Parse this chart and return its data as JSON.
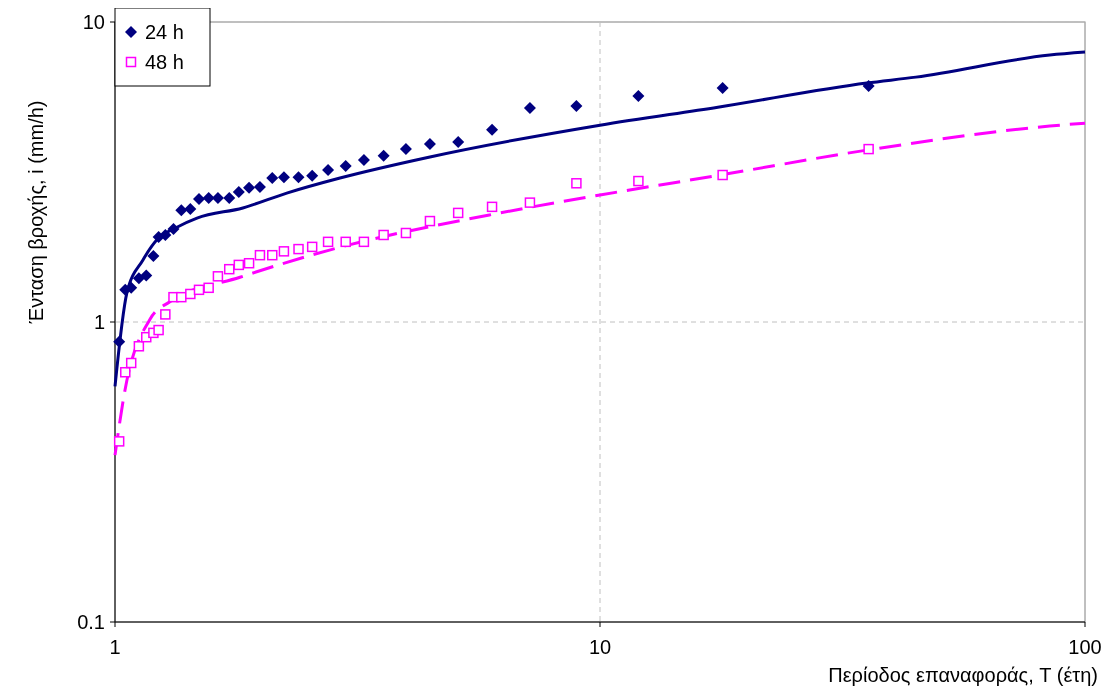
{
  "chart_data": {
    "type": "scatter",
    "xlabel": "Περίοδος επαναφοράς, T (έτη)",
    "ylabel": "Ένταση βροχής, i (mm/h)",
    "log": "xy",
    "xlim": [
      1,
      100
    ],
    "ylim": [
      0.1,
      10
    ],
    "xticks": [
      1,
      10,
      100
    ],
    "yticks": [
      0.1,
      1,
      10
    ],
    "grid": true,
    "legend": "top left",
    "x": [
      1.02,
      1.05,
      1.08,
      1.12,
      1.16,
      1.2,
      1.23,
      1.27,
      1.32,
      1.37,
      1.43,
      1.49,
      1.56,
      1.63,
      1.72,
      1.8,
      1.89,
      1.99,
      2.11,
      2.23,
      2.39,
      2.55,
      2.75,
      2.99,
      3.26,
      3.58,
      3.98,
      4.46,
      5.1,
      5.99,
      7.17,
      8.94,
      12,
      17.9,
      35.8
    ],
    "series": [
      {
        "name": "24 h",
        "color": "#000080",
        "marker": "diamond",
        "values": [
          0.86,
          1.28,
          1.3,
          1.4,
          1.43,
          1.66,
          1.92,
          1.95,
          2.04,
          2.36,
          2.38,
          2.57,
          2.59,
          2.59,
          2.59,
          2.71,
          2.8,
          2.82,
          3.02,
          3.04,
          3.04,
          3.07,
          3.21,
          3.31,
          3.47,
          3.58,
          3.77,
          3.92,
          3.98,
          4.37,
          5.17,
          5.25,
          5.67,
          6.03,
          6.12
        ]
      },
      {
        "name": "48 h",
        "color": "#ff00ff",
        "marker": "square",
        "values": [
          0.4,
          0.68,
          0.73,
          0.83,
          0.89,
          0.92,
          0.94,
          1.06,
          1.21,
          1.21,
          1.24,
          1.28,
          1.3,
          1.42,
          1.5,
          1.55,
          1.57,
          1.67,
          1.67,
          1.72,
          1.75,
          1.78,
          1.85,
          1.85,
          1.85,
          1.95,
          1.98,
          2.17,
          2.31,
          2.42,
          2.5,
          2.9,
          2.95,
          3.09,
          3.77
        ]
      },
      {
        "type": "line",
        "color": "#000080",
        "line_style": "solid",
        "marker": "none",
        "x": [
          1,
          1.058,
          1.142,
          1.22,
          1.342,
          1.476,
          1.835,
          2.26,
          2.91,
          4.46,
          10,
          17.5,
          35.5,
          44.8,
          84.6,
          100
        ],
        "values": [
          0.61,
          1.25,
          1.61,
          1.88,
          2.07,
          2.22,
          2.4,
          2.69,
          3.02,
          3.55,
          4.53,
          5.2,
          6.26,
          6.55,
          7.76,
          7.94
        ]
      },
      {
        "type": "line",
        "color": "#ff00ff",
        "line_style": "dashed",
        "marker": "none",
        "x": [
          1,
          1.048,
          1.18,
          1.3,
          1.81,
          2.78,
          3.01,
          6.22,
          10,
          17.7,
          35.5,
          84.6,
          100
        ],
        "values": [
          0.36,
          0.59,
          1.02,
          1.17,
          1.41,
          1.74,
          1.8,
          2.31,
          2.65,
          3.09,
          3.74,
          4.5,
          4.6
        ]
      }
    ]
  }
}
